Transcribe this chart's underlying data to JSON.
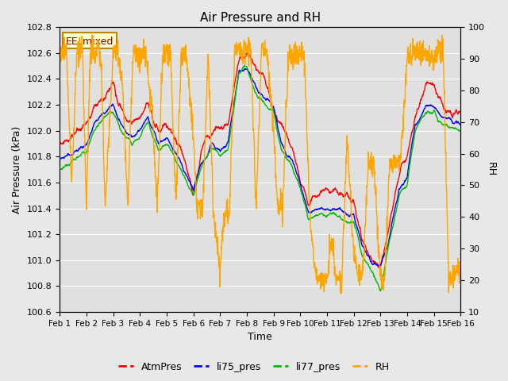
{
  "title": "Air Pressure and RH",
  "xlabel": "Time",
  "ylabel_left": "Air Pressure (kPa)",
  "ylabel_right": "RH",
  "ylim_left": [
    100.6,
    102.8
  ],
  "ylim_right": [
    10,
    100
  ],
  "yticks_left": [
    100.6,
    100.8,
    101.0,
    101.2,
    101.4,
    101.6,
    101.8,
    102.0,
    102.2,
    102.4,
    102.6,
    102.8
  ],
  "yticks_right": [
    10,
    20,
    30,
    40,
    50,
    60,
    70,
    80,
    90,
    100
  ],
  "xtick_labels": [
    "Feb 1",
    "Feb 2",
    "Feb 3",
    "Feb 4",
    "Feb 5",
    "Feb 6",
    "Feb 7",
    "Feb 8",
    "Feb 9",
    "Feb 10",
    "Feb 11",
    "Feb 12",
    "Feb 13",
    "Feb 14",
    "Feb 15",
    "Feb 16"
  ],
  "background_color": "#e8e8e8",
  "plot_bg_color": "#e0e0e0",
  "grid_color": "#ffffff",
  "legend_box_label": "EE_mixed",
  "legend_box_facecolor": "#ffffcc",
  "legend_box_edgecolor": "#b8860b",
  "legend_box_textcolor": "#8b0000",
  "atm_color": "#ff0000",
  "li75_color": "#0000ff",
  "li77_color": "#00bb00",
  "rh_color": "#ffa500",
  "line_lw": 1.0,
  "n_days": 15,
  "pts_per_day": 96,
  "atm_kx": [
    0,
    0.5,
    1.0,
    1.3,
    1.7,
    2.0,
    2.3,
    2.7,
    3.0,
    3.3,
    3.7,
    4.0,
    4.3,
    4.7,
    5.0,
    5.3,
    5.7,
    6.0,
    6.3,
    6.7,
    7.0,
    7.3,
    7.7,
    8.0,
    8.3,
    8.7,
    9.0,
    9.3,
    9.7,
    10.0,
    10.3,
    10.7,
    11.0,
    11.3,
    11.7,
    12.0,
    12.3,
    12.7,
    13.0,
    13.3,
    13.7,
    14.0,
    14.3,
    14.7,
    15.0
  ],
  "atm_ky": [
    101.9,
    101.95,
    102.05,
    102.18,
    102.25,
    102.35,
    102.15,
    102.05,
    102.1,
    102.2,
    102.0,
    102.05,
    101.95,
    101.75,
    101.5,
    101.85,
    102.0,
    102.0,
    102.05,
    102.55,
    102.6,
    102.5,
    102.4,
    102.15,
    102.05,
    101.85,
    101.6,
    101.45,
    101.5,
    101.55,
    101.55,
    101.5,
    101.45,
    101.15,
    101.0,
    100.95,
    101.25,
    101.65,
    101.8,
    102.1,
    102.35,
    102.35,
    102.2,
    102.1,
    102.15
  ],
  "li75_ky": [
    101.78,
    101.82,
    101.9,
    102.05,
    102.15,
    102.2,
    102.05,
    101.95,
    102.0,
    102.1,
    101.9,
    101.95,
    101.85,
    101.68,
    101.55,
    101.75,
    101.9,
    101.85,
    101.9,
    102.45,
    102.5,
    102.35,
    102.25,
    102.2,
    101.9,
    101.78,
    101.6,
    101.38,
    101.4,
    101.4,
    101.4,
    101.38,
    101.35,
    101.12,
    100.98,
    100.95,
    101.15,
    101.55,
    101.65,
    102.05,
    102.2,
    102.2,
    102.12,
    102.08,
    102.05
  ],
  "li77_ky": [
    101.7,
    101.76,
    101.85,
    102.0,
    102.1,
    102.15,
    102.0,
    101.9,
    101.95,
    102.05,
    101.85,
    101.9,
    101.8,
    101.63,
    101.5,
    101.72,
    101.88,
    101.8,
    101.85,
    102.45,
    102.5,
    102.3,
    102.2,
    102.15,
    101.85,
    101.73,
    101.55,
    101.32,
    101.35,
    101.35,
    101.35,
    101.3,
    101.3,
    101.05,
    100.92,
    100.75,
    101.1,
    101.5,
    101.6,
    102.0,
    102.15,
    102.15,
    102.05,
    102.02,
    102.0
  ],
  "rh_kx": [
    0,
    0.1,
    0.25,
    0.45,
    0.65,
    0.85,
    1.0,
    1.15,
    1.35,
    1.55,
    1.7,
    2.0,
    2.15,
    2.35,
    2.55,
    2.75,
    3.0,
    3.2,
    3.45,
    3.65,
    3.85,
    4.0,
    4.15,
    4.35,
    4.55,
    4.75,
    5.0,
    5.15,
    5.35,
    5.55,
    5.75,
    6.0,
    6.15,
    6.35,
    6.55,
    6.75,
    7.0,
    7.15,
    7.35,
    7.55,
    7.75,
    8.0,
    8.15,
    8.35,
    8.55,
    8.75,
    9.0,
    9.15,
    9.35,
    9.55,
    9.75,
    10.0,
    10.15,
    10.35,
    10.55,
    10.75,
    11.0,
    11.15,
    11.35,
    11.55,
    11.75,
    12.0,
    12.15,
    12.35,
    12.55,
    12.75,
    13.0,
    13.15,
    13.35,
    13.55,
    13.75,
    14.0,
    14.15,
    14.35,
    14.55,
    14.75,
    15.0
  ],
  "rh_ky": [
    88,
    93,
    93,
    50,
    93,
    93,
    43,
    93,
    93,
    90,
    43,
    92,
    93,
    82,
    44,
    92,
    91,
    91,
    75,
    43,
    91,
    91,
    91,
    44,
    91,
    91,
    65,
    43,
    43,
    91,
    42,
    22,
    42,
    42,
    93,
    93,
    93,
    93,
    43,
    93,
    93,
    67,
    43,
    43,
    91,
    90,
    91,
    90,
    43,
    23,
    20,
    20,
    32,
    20,
    20,
    65,
    29,
    22,
    22,
    58,
    57,
    20,
    20,
    57,
    57,
    58,
    90,
    90,
    92,
    92,
    90,
    90,
    93,
    93,
    20,
    22,
    25
  ]
}
